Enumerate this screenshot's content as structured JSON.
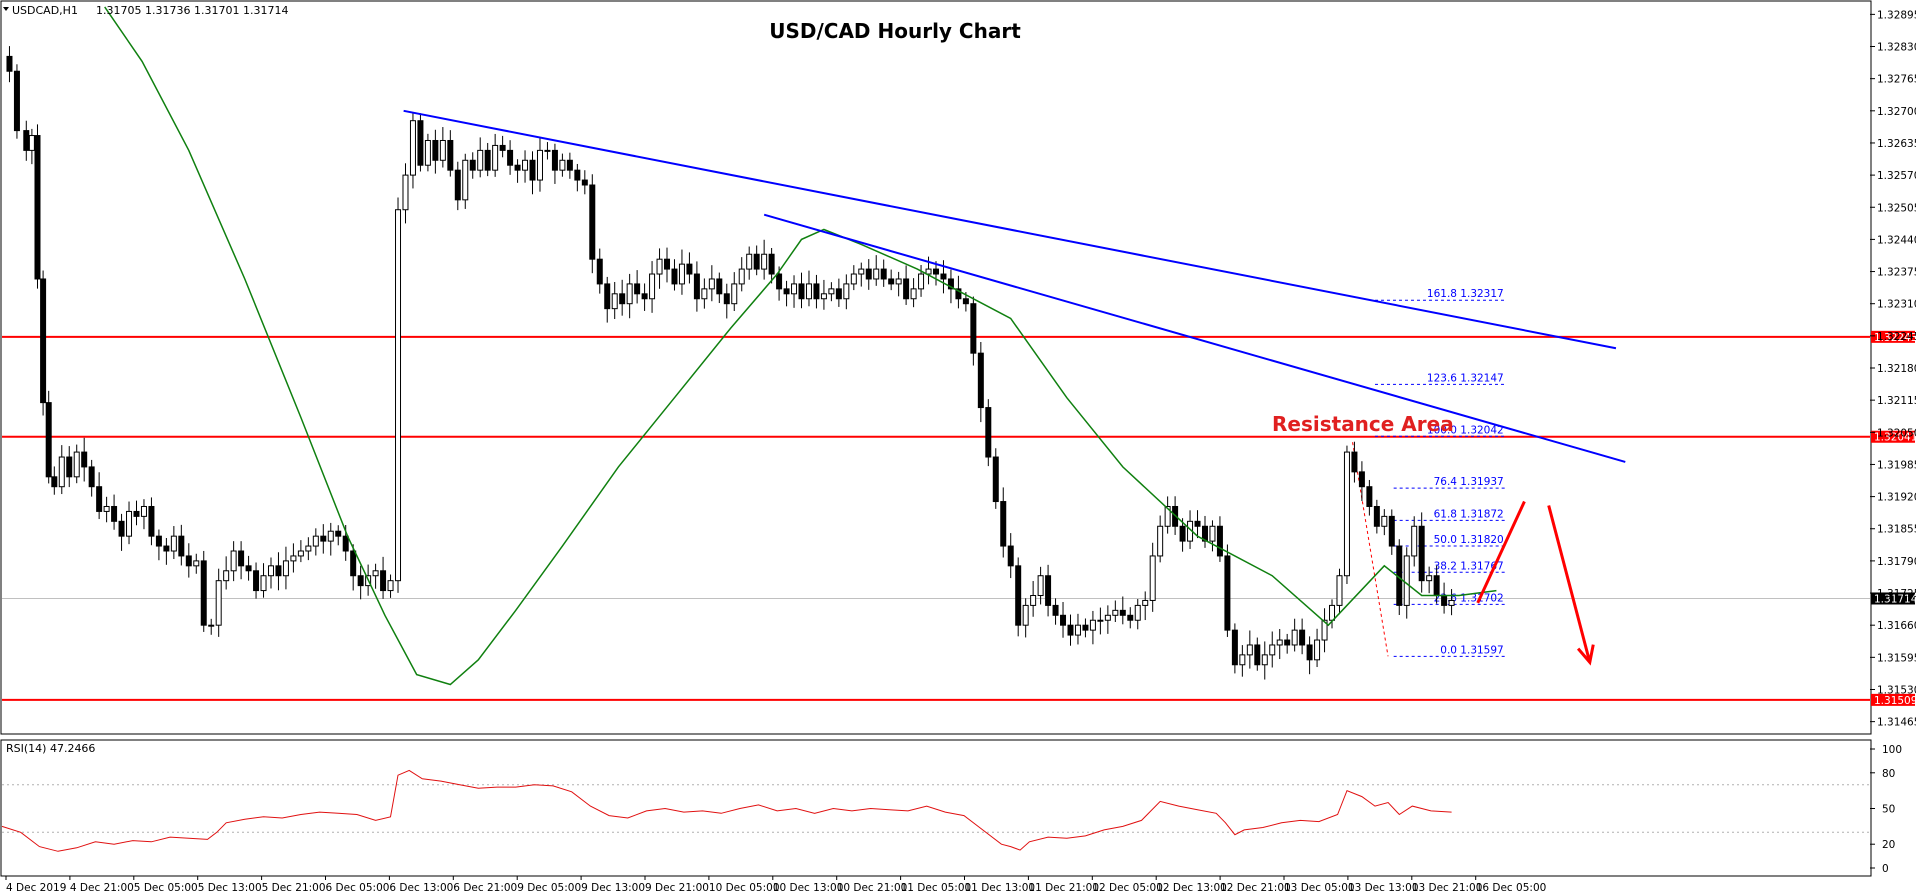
{
  "header": {
    "symbol": "USDCAD,H1",
    "ohlc": "1.31705 1.31736 1.31701 1.31714"
  },
  "chart_data": {
    "type": "candlestick",
    "title": "USD/CAD Hourly Chart",
    "annotation": "Resistance Area",
    "price_axis": {
      "ylim": [
        1.3144,
        1.3292
      ],
      "ticks": [
        "1.32895",
        "1.32830",
        "1.32765",
        "1.32700",
        "1.32635",
        "1.32570",
        "1.32505",
        "1.32440",
        "1.32375",
        "1.32310",
        "1.32245",
        "1.32180",
        "1.32115",
        "1.32050",
        "1.31985",
        "1.31920",
        "1.31855",
        "1.31790",
        "1.31725",
        "1.31660",
        "1.31595",
        "1.31530",
        "1.31465"
      ]
    },
    "time_axis": {
      "ticks": [
        "4 Dec 2019",
        "4 Dec 21:00",
        "5 Dec 05:00",
        "5 Dec 13:00",
        "5 Dec 21:00",
        "6 Dec 05:00",
        "6 Dec 13:00",
        "6 Dec 21:00",
        "9 Dec 05:00",
        "9 Dec 13:00",
        "9 Dec 21:00",
        "10 Dec 05:00",
        "10 Dec 13:00",
        "10 Dec 21:00",
        "11 Dec 05:00",
        "11 Dec 13:00",
        "11 Dec 21:00",
        "12 Dec 05:00",
        "12 Dec 13:00",
        "12 Dec 21:00",
        "13 Dec 05:00",
        "13 Dec 13:00",
        "13 Dec 21:00",
        "16 Dec 05:00"
      ]
    },
    "horizontal_levels": [
      {
        "price": 1.32243,
        "label": "1.32243",
        "color": "#ff0000"
      },
      {
        "price": 1.32041,
        "label": "1.32041",
        "color": "#ff0000"
      },
      {
        "price": 1.31509,
        "label": "1.31509",
        "color": "#ff0000"
      },
      {
        "price": 1.31714,
        "label": "1.31714",
        "color": "#c0c0c0"
      }
    ],
    "fibonacci": [
      {
        "label": "161.8 1.32317",
        "price": 1.32317
      },
      {
        "label": "123.6 1.32147",
        "price": 1.32147
      },
      {
        "label": "100.0 1.32042",
        "price": 1.32042
      },
      {
        "label": "76.4 1.31937",
        "price": 1.31937
      },
      {
        "label": "61.8 1.31872",
        "price": 1.31872
      },
      {
        "label": "50.0 1.31820",
        "price": 1.3182
      },
      {
        "label": "38.2 1.31767",
        "price": 1.31767
      },
      {
        "label": "23.6 1.31702",
        "price": 1.31702
      },
      {
        "label": "0.0 1.31597",
        "price": 1.31597
      }
    ],
    "trendlines": [
      {
        "name": "upper",
        "color": "#0000ff",
        "from": [
          1.327,
          0.215
        ],
        "to": [
          1.3222,
          0.864
        ]
      },
      {
        "name": "lower",
        "color": "#0000ff",
        "from": [
          1.3249,
          0.408
        ],
        "to": [
          1.3199,
          0.869
        ]
      }
    ],
    "price_points": [
      [
        0.0,
        1.3281
      ],
      [
        0.004,
        1.3278
      ],
      [
        0.008,
        1.3266
      ],
      [
        0.013,
        1.3262
      ],
      [
        0.016,
        1.3265
      ],
      [
        0.019,
        1.3236
      ],
      [
        0.022,
        1.3211
      ],
      [
        0.025,
        1.3196
      ],
      [
        0.028,
        1.3194
      ],
      [
        0.032,
        1.32
      ],
      [
        0.036,
        1.3196
      ],
      [
        0.04,
        1.3201
      ],
      [
        0.044,
        1.3198
      ],
      [
        0.048,
        1.3194
      ],
      [
        0.052,
        1.3189
      ],
      [
        0.056,
        1.319
      ],
      [
        0.06,
        1.3187
      ],
      [
        0.064,
        1.3184
      ],
      [
        0.068,
        1.3189
      ],
      [
        0.072,
        1.3188
      ],
      [
        0.076,
        1.319
      ],
      [
        0.08,
        1.3184
      ],
      [
        0.084,
        1.3182
      ],
      [
        0.088,
        1.3181
      ],
      [
        0.092,
        1.3184
      ],
      [
        0.096,
        1.318
      ],
      [
        0.1,
        1.3178
      ],
      [
        0.104,
        1.3179
      ],
      [
        0.108,
        1.3166
      ],
      [
        0.112,
        1.3166
      ],
      [
        0.116,
        1.3175
      ],
      [
        0.12,
        1.3177
      ],
      [
        0.124,
        1.3181
      ],
      [
        0.128,
        1.3178
      ],
      [
        0.132,
        1.3177
      ],
      [
        0.136,
        1.3173
      ],
      [
        0.14,
        1.3176
      ],
      [
        0.144,
        1.3178
      ],
      [
        0.148,
        1.3176
      ],
      [
        0.152,
        1.3179
      ],
      [
        0.156,
        1.318
      ],
      [
        0.16,
        1.3181
      ],
      [
        0.164,
        1.3182
      ],
      [
        0.168,
        1.3184
      ],
      [
        0.172,
        1.3183
      ],
      [
        0.176,
        1.3185
      ],
      [
        0.18,
        1.3184
      ],
      [
        0.184,
        1.3181
      ],
      [
        0.188,
        1.3176
      ],
      [
        0.192,
        1.3174
      ],
      [
        0.196,
        1.3176
      ],
      [
        0.2,
        1.3177
      ],
      [
        0.204,
        1.3173
      ],
      [
        0.208,
        1.3175
      ],
      [
        0.212,
        1.325
      ],
      [
        0.216,
        1.3257
      ],
      [
        0.22,
        1.3268
      ],
      [
        0.224,
        1.3259
      ],
      [
        0.228,
        1.3264
      ],
      [
        0.232,
        1.326
      ],
      [
        0.236,
        1.3264
      ],
      [
        0.24,
        1.3258
      ],
      [
        0.244,
        1.3252
      ],
      [
        0.248,
        1.326
      ],
      [
        0.252,
        1.3258
      ],
      [
        0.256,
        1.3262
      ],
      [
        0.26,
        1.3258
      ],
      [
        0.264,
        1.3263
      ],
      [
        0.268,
        1.3262
      ],
      [
        0.272,
        1.3259
      ],
      [
        0.276,
        1.3258
      ],
      [
        0.28,
        1.326
      ],
      [
        0.284,
        1.3256
      ],
      [
        0.288,
        1.3262
      ],
      [
        0.292,
        1.3262
      ],
      [
        0.296,
        1.3258
      ],
      [
        0.3,
        1.326
      ],
      [
        0.304,
        1.3258
      ],
      [
        0.308,
        1.3256
      ],
      [
        0.312,
        1.3255
      ],
      [
        0.316,
        1.324
      ],
      [
        0.32,
        1.3235
      ],
      [
        0.324,
        1.323
      ],
      [
        0.328,
        1.3233
      ],
      [
        0.332,
        1.3231
      ],
      [
        0.336,
        1.3235
      ],
      [
        0.34,
        1.3233
      ],
      [
        0.344,
        1.3232
      ],
      [
        0.348,
        1.3237
      ],
      [
        0.352,
        1.324
      ],
      [
        0.356,
        1.3238
      ],
      [
        0.36,
        1.3235
      ],
      [
        0.364,
        1.3239
      ],
      [
        0.368,
        1.3237
      ],
      [
        0.372,
        1.3232
      ],
      [
        0.376,
        1.3234
      ],
      [
        0.38,
        1.3236
      ],
      [
        0.384,
        1.3233
      ],
      [
        0.388,
        1.3231
      ],
      [
        0.392,
        1.3235
      ],
      [
        0.396,
        1.3238
      ],
      [
        0.4,
        1.3241
      ],
      [
        0.404,
        1.3238
      ],
      [
        0.408,
        1.3241
      ],
      [
        0.412,
        1.3237
      ],
      [
        0.416,
        1.3234
      ],
      [
        0.42,
        1.3233
      ],
      [
        0.424,
        1.3235
      ],
      [
        0.428,
        1.3232
      ],
      [
        0.432,
        1.3235
      ],
      [
        0.436,
        1.3232
      ],
      [
        0.44,
        1.3233
      ],
      [
        0.444,
        1.3234
      ],
      [
        0.448,
        1.3232
      ],
      [
        0.452,
        1.3235
      ],
      [
        0.456,
        1.3237
      ],
      [
        0.46,
        1.3238
      ],
      [
        0.464,
        1.3236
      ],
      [
        0.468,
        1.3238
      ],
      [
        0.472,
        1.3236
      ],
      [
        0.476,
        1.3235
      ],
      [
        0.48,
        1.3236
      ],
      [
        0.484,
        1.3232
      ],
      [
        0.488,
        1.3234
      ],
      [
        0.492,
        1.3237
      ],
      [
        0.496,
        1.3238
      ],
      [
        0.5,
        1.3237
      ],
      [
        0.504,
        1.3236
      ],
      [
        0.508,
        1.3234
      ],
      [
        0.512,
        1.3232
      ],
      [
        0.516,
        1.3231
      ],
      [
        0.52,
        1.3221
      ],
      [
        0.524,
        1.321
      ],
      [
        0.528,
        1.32
      ],
      [
        0.532,
        1.3191
      ],
      [
        0.536,
        1.3182
      ],
      [
        0.54,
        1.3178
      ],
      [
        0.544,
        1.3166
      ],
      [
        0.548,
        1.317
      ],
      [
        0.552,
        1.3172
      ],
      [
        0.556,
        1.3176
      ],
      [
        0.56,
        1.317
      ],
      [
        0.564,
        1.3168
      ],
      [
        0.568,
        1.3166
      ],
      [
        0.572,
        1.3164
      ],
      [
        0.576,
        1.3166
      ],
      [
        0.58,
        1.3165
      ],
      [
        0.584,
        1.3167
      ],
      [
        0.588,
        1.3167
      ],
      [
        0.592,
        1.3168
      ],
      [
        0.596,
        1.3169
      ],
      [
        0.6,
        1.3168
      ],
      [
        0.604,
        1.3167
      ],
      [
        0.608,
        1.317
      ],
      [
        0.612,
        1.3171
      ],
      [
        0.616,
        1.318
      ],
      [
        0.62,
        1.3186
      ],
      [
        0.624,
        1.319
      ],
      [
        0.628,
        1.3186
      ],
      [
        0.632,
        1.3183
      ],
      [
        0.636,
        1.3187
      ],
      [
        0.64,
        1.3186
      ],
      [
        0.644,
        1.3183
      ],
      [
        0.648,
        1.3186
      ],
      [
        0.652,
        1.318
      ],
      [
        0.656,
        1.3165
      ],
      [
        0.66,
        1.3158
      ],
      [
        0.664,
        1.316
      ],
      [
        0.668,
        1.3162
      ],
      [
        0.672,
        1.3158
      ],
      [
        0.676,
        1.316
      ],
      [
        0.68,
        1.3162
      ],
      [
        0.684,
        1.3163
      ],
      [
        0.688,
        1.3162
      ],
      [
        0.692,
        1.3165
      ],
      [
        0.696,
        1.3162
      ],
      [
        0.7,
        1.3159
      ],
      [
        0.704,
        1.3163
      ],
      [
        0.708,
        1.3167
      ],
      [
        0.712,
        1.317
      ],
      [
        0.716,
        1.3176
      ],
      [
        0.72,
        1.3201
      ],
      [
        0.724,
        1.3197
      ],
      [
        0.728,
        1.3194
      ],
      [
        0.732,
        1.319
      ],
      [
        0.736,
        1.3186
      ],
      [
        0.74,
        1.3188
      ],
      [
        0.744,
        1.3182
      ],
      [
        0.748,
        1.317
      ],
      [
        0.752,
        1.318
      ],
      [
        0.756,
        1.3186
      ],
      [
        0.76,
        1.3175
      ],
      [
        0.764,
        1.3176
      ],
      [
        0.768,
        1.3172
      ],
      [
        0.772,
        1.317
      ],
      [
        0.776,
        1.3171
      ]
    ],
    "ma_points": [
      [
        0.055,
        1.3291
      ],
      [
        0.075,
        1.328
      ],
      [
        0.1,
        1.3262
      ],
      [
        0.13,
        1.3236
      ],
      [
        0.16,
        1.3208
      ],
      [
        0.185,
        1.3184
      ],
      [
        0.205,
        1.3168
      ],
      [
        0.222,
        1.3156
      ],
      [
        0.24,
        1.3154
      ],
      [
        0.255,
        1.3159
      ],
      [
        0.275,
        1.3169
      ],
      [
        0.3,
        1.3182
      ],
      [
        0.33,
        1.3198
      ],
      [
        0.36,
        1.3212
      ],
      [
        0.39,
        1.3226
      ],
      [
        0.415,
        1.3237
      ],
      [
        0.428,
        1.3244
      ],
      [
        0.44,
        1.3246
      ],
      [
        0.46,
        1.3243
      ],
      [
        0.49,
        1.3238
      ],
      [
        0.51,
        1.3234
      ],
      [
        0.54,
        1.3228
      ],
      [
        0.57,
        1.3212
      ],
      [
        0.6,
        1.3198
      ],
      [
        0.64,
        1.3184
      ],
      [
        0.68,
        1.3176
      ],
      [
        0.71,
        1.3166
      ],
      [
        0.74,
        1.3178
      ],
      [
        0.76,
        1.3172
      ],
      [
        0.78,
        1.3172
      ],
      [
        0.8,
        1.3173
      ]
    ],
    "arrows": [
      {
        "color": "#ff0000",
        "from": [
          0.79,
          1.31705
        ],
        "to": [
          0.815,
          1.3191
        ]
      },
      {
        "color": "#ff0000",
        "from": [
          0.828,
          1.31902
        ],
        "to": [
          0.85,
          1.31585
        ]
      }
    ],
    "rsi": {
      "label": "RSI(14) 47.2466",
      "ylim": [
        0,
        100
      ],
      "ticks": [
        "100",
        "80",
        "50",
        "20",
        "0"
      ],
      "levels": [
        30,
        70
      ],
      "points": [
        [
          0.0,
          35
        ],
        [
          0.01,
          30
        ],
        [
          0.02,
          18
        ],
        [
          0.03,
          14
        ],
        [
          0.04,
          17
        ],
        [
          0.05,
          22
        ],
        [
          0.06,
          20
        ],
        [
          0.07,
          23
        ],
        [
          0.08,
          22
        ],
        [
          0.09,
          26
        ],
        [
          0.1,
          25
        ],
        [
          0.11,
          24
        ],
        [
          0.115,
          30
        ],
        [
          0.12,
          38
        ],
        [
          0.13,
          41
        ],
        [
          0.14,
          43
        ],
        [
          0.15,
          42
        ],
        [
          0.16,
          45
        ],
        [
          0.17,
          47
        ],
        [
          0.18,
          46
        ],
        [
          0.19,
          45
        ],
        [
          0.2,
          40
        ],
        [
          0.208,
          43
        ],
        [
          0.212,
          78
        ],
        [
          0.218,
          82
        ],
        [
          0.225,
          75
        ],
        [
          0.235,
          73
        ],
        [
          0.245,
          70
        ],
        [
          0.255,
          67
        ],
        [
          0.265,
          68
        ],
        [
          0.275,
          68
        ],
        [
          0.285,
          70
        ],
        [
          0.295,
          69
        ],
        [
          0.305,
          64
        ],
        [
          0.315,
          52
        ],
        [
          0.325,
          44
        ],
        [
          0.335,
          42
        ],
        [
          0.345,
          48
        ],
        [
          0.355,
          50
        ],
        [
          0.365,
          47
        ],
        [
          0.375,
          48
        ],
        [
          0.385,
          46
        ],
        [
          0.395,
          50
        ],
        [
          0.405,
          53
        ],
        [
          0.415,
          48
        ],
        [
          0.425,
          50
        ],
        [
          0.435,
          46
        ],
        [
          0.445,
          50
        ],
        [
          0.455,
          48
        ],
        [
          0.465,
          50
        ],
        [
          0.475,
          49
        ],
        [
          0.485,
          48
        ],
        [
          0.495,
          52
        ],
        [
          0.505,
          47
        ],
        [
          0.515,
          44
        ],
        [
          0.525,
          32
        ],
        [
          0.535,
          20
        ],
        [
          0.54,
          18
        ],
        [
          0.545,
          15
        ],
        [
          0.55,
          22
        ],
        [
          0.56,
          26
        ],
        [
          0.57,
          25
        ],
        [
          0.58,
          27
        ],
        [
          0.59,
          32
        ],
        [
          0.6,
          35
        ],
        [
          0.61,
          40
        ],
        [
          0.62,
          56
        ],
        [
          0.63,
          52
        ],
        [
          0.64,
          49
        ],
        [
          0.65,
          46
        ],
        [
          0.655,
          38
        ],
        [
          0.66,
          28
        ],
        [
          0.665,
          32
        ],
        [
          0.675,
          34
        ],
        [
          0.685,
          38
        ],
        [
          0.695,
          40
        ],
        [
          0.705,
          39
        ],
        [
          0.715,
          45
        ],
        [
          0.72,
          65
        ],
        [
          0.728,
          60
        ],
        [
          0.735,
          52
        ],
        [
          0.742,
          55
        ],
        [
          0.748,
          45
        ],
        [
          0.755,
          52
        ],
        [
          0.765,
          48
        ],
        [
          0.776,
          47
        ]
      ]
    }
  }
}
